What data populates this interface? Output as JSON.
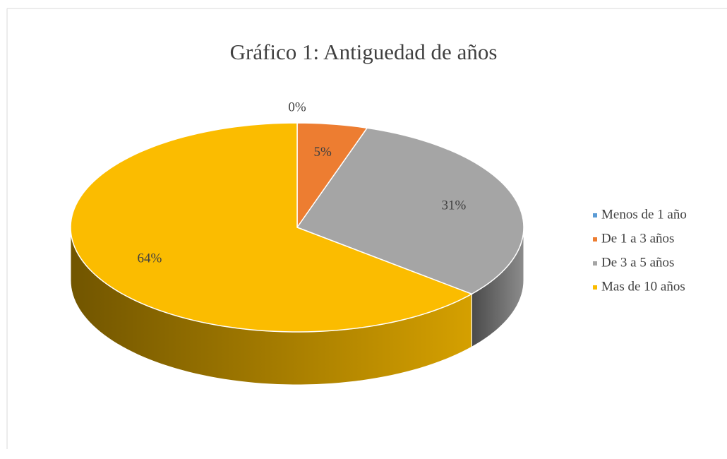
{
  "chart_data": {
    "type": "pie",
    "title": "Gráfico 1: Antiguedad de años",
    "categories": [
      "Menos de 1 año",
      "De 1 a 3 años",
      "De 3 a 5 años",
      "Mas de 10 años"
    ],
    "values": [
      0,
      5,
      31,
      64
    ],
    "value_labels": [
      "0%",
      "5%",
      "31%",
      "64%"
    ],
    "colors": [
      "#5b9bd5",
      "#ed7d31",
      "#a5a5a5",
      "#fbbc00"
    ],
    "legend": "right"
  }
}
